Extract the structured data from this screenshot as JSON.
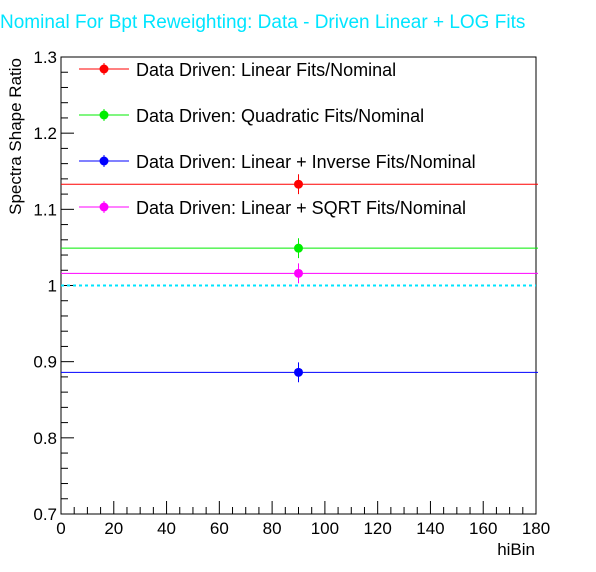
{
  "chart_data": {
    "type": "scatter",
    "title": "Nominal For Bpt Reweighting: Data - Driven Linear + LOG Fits",
    "xlabel": "hiBin",
    "ylabel": "Spectra Shape Ratio",
    "xlim": [
      0,
      180
    ],
    "ylim": [
      0.7,
      1.3
    ],
    "x_ticks": [
      "0",
      "20",
      "40",
      "60",
      "80",
      "100",
      "120",
      "140",
      "160",
      "180"
    ],
    "y_ticks": [
      "0.7",
      "0.8",
      "0.9",
      "1",
      "1.1",
      "1.2",
      "1.3"
    ],
    "reference_line": {
      "y": 1.0,
      "color": "#00e5ff",
      "style": "dotted"
    },
    "legend_placement": "top",
    "series": [
      {
        "name": "Data Driven: Linear Fits/Nominal",
        "color": "#ff0000",
        "x": 90,
        "y": 1.133,
        "err": 0.013
      },
      {
        "name": "Data Driven: Quadratic Fits/Nominal",
        "color": "#00ee00",
        "x": 90,
        "y": 1.049,
        "err": 0.013
      },
      {
        "name": "Data Driven: Linear + Inverse Fits/Nominal",
        "color": "#0000ff",
        "x": 90,
        "y": 0.886,
        "err": 0.013
      },
      {
        "name": "Data Driven: Linear + SQRT Fits/Nominal",
        "color": "#ff00ff",
        "x": 90,
        "y": 1.016,
        "err": 0.013
      }
    ]
  }
}
